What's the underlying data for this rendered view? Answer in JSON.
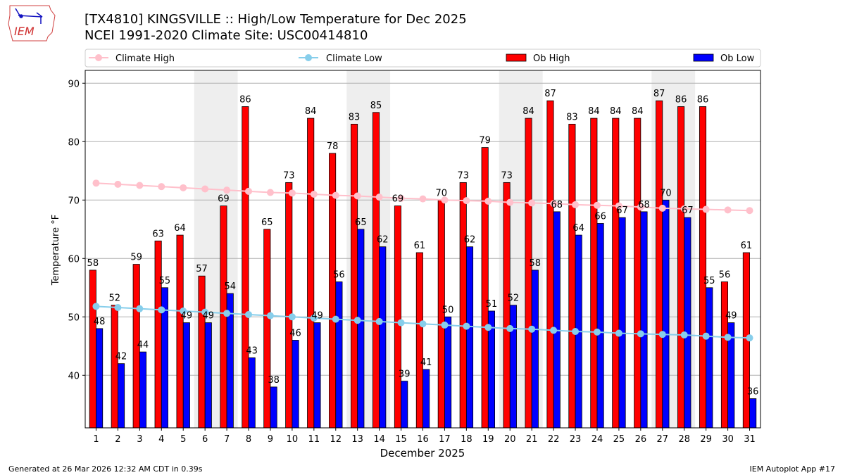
{
  "header": {
    "logo_text": "IEM",
    "title_line1": "[TX4810] KINGSVILLE :: High/Low Temperature for Dec 2025",
    "title_line2": "NCEI 1991-2020 Climate Site: USC00414810"
  },
  "footer": {
    "left": "Generated at 26 Mar 2026 12:32 AM CDT in 0.39s",
    "right": "IEM Autoplot App #17"
  },
  "colors": {
    "ob_high": "#ff0000",
    "ob_low": "#0000ff",
    "climate_high": "#ffc0cb",
    "climate_low": "#87ceeb",
    "weekend_shade": "#eeeeee"
  },
  "chart_data": {
    "type": "bar",
    "title": "[TX4810] KINGSVILLE :: High/Low Temperature for Dec 2025",
    "subtitle": "NCEI 1991-2020 Climate Site: USC00414810",
    "xlabel": "December 2025",
    "ylabel": "Temperature °F",
    "ylim": [
      31,
      92.2
    ],
    "yticks": [
      40,
      50,
      60,
      70,
      80,
      90
    ],
    "grid": "y",
    "legend_placement": "top",
    "legend": [
      "Climate High",
      "Climate Low",
      "Ob High",
      "Ob Low"
    ],
    "categories": [
      "1",
      "2",
      "3",
      "4",
      "5",
      "6",
      "7",
      "8",
      "9",
      "10",
      "11",
      "12",
      "13",
      "14",
      "15",
      "16",
      "17",
      "18",
      "19",
      "20",
      "21",
      "22",
      "23",
      "24",
      "25",
      "26",
      "27",
      "28",
      "29",
      "30",
      "31"
    ],
    "shaded_days": [
      [
        6,
        7
      ],
      [
        13,
        14
      ],
      [
        20,
        21
      ],
      [
        27,
        28
      ]
    ],
    "series": [
      {
        "name": "Ob High",
        "type": "bar",
        "values": [
          58,
          52,
          59,
          63,
          64,
          57,
          69,
          86,
          65,
          73,
          84,
          78,
          83,
          85,
          69,
          61,
          70,
          73,
          79,
          73,
          84,
          87,
          83,
          84,
          84,
          84,
          87,
          86,
          86,
          56,
          61
        ]
      },
      {
        "name": "Ob Low",
        "type": "bar",
        "values": [
          48,
          42,
          44,
          55,
          49,
          49,
          54,
          43,
          38,
          46,
          49,
          56,
          65,
          62,
          39,
          41,
          50,
          62,
          51,
          52,
          58,
          68,
          64,
          66,
          67,
          68,
          70,
          67,
          55,
          49,
          36
        ]
      },
      {
        "name": "Climate High",
        "type": "line",
        "values": [
          72.9,
          72.7,
          72.5,
          72.3,
          72.1,
          71.9,
          71.7,
          71.5,
          71.3,
          71.2,
          71.0,
          70.8,
          70.7,
          70.5,
          70.3,
          70.2,
          70.0,
          69.9,
          69.8,
          69.6,
          69.5,
          69.4,
          69.2,
          69.1,
          69.0,
          68.8,
          68.6,
          68.5,
          68.4,
          68.3,
          68.2
        ]
      },
      {
        "name": "Climate Low",
        "type": "line",
        "values": [
          51.8,
          51.6,
          51.4,
          51.2,
          51.0,
          50.8,
          50.6,
          50.4,
          50.2,
          50.0,
          49.8,
          49.6,
          49.4,
          49.2,
          49.0,
          48.8,
          48.6,
          48.4,
          48.2,
          48.0,
          47.9,
          47.7,
          47.5,
          47.4,
          47.2,
          47.1,
          47.0,
          46.9,
          46.7,
          46.5,
          46.4
        ]
      }
    ]
  }
}
